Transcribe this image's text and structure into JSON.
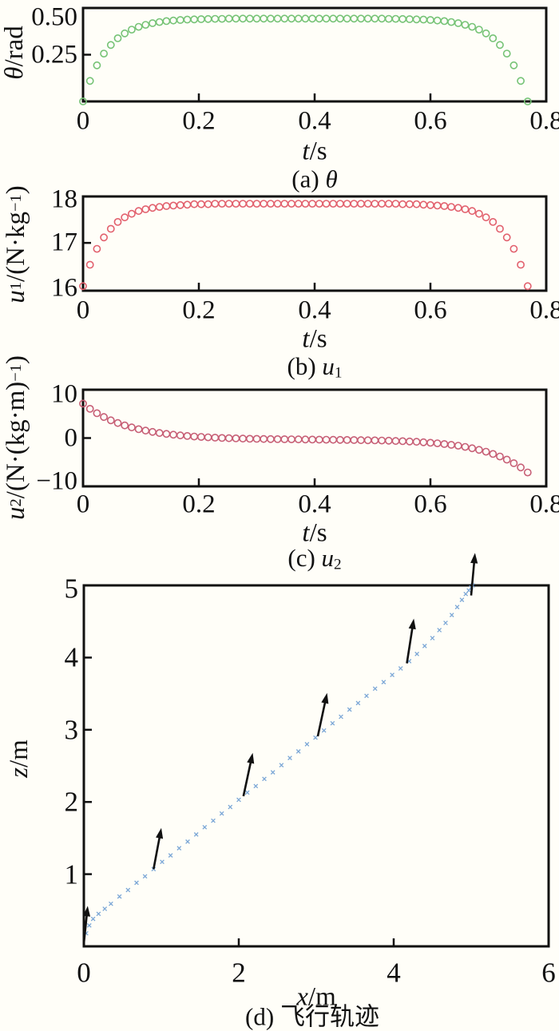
{
  "figure": {
    "background": "#fffef8",
    "axis_color": "#111111"
  },
  "chart_data": [
    {
      "id": "a",
      "type": "scatter",
      "marker": "open-circle",
      "color": "#76c376",
      "caption": "(a) θ",
      "xlabel": "t/s",
      "ylabel": "θ/rad",
      "xlim": [
        0,
        0.8
      ],
      "ylim": [
        0,
        0.5
      ],
      "xticks": [
        {
          "v": 0,
          "label": "0"
        },
        {
          "v": 0.2,
          "label": "0.2"
        },
        {
          "v": 0.4,
          "label": "0.4"
        },
        {
          "v": 0.6,
          "label": "0.6"
        },
        {
          "v": 0.8,
          "label": "0.8"
        }
      ],
      "yticks": [
        {
          "v": 0.5,
          "label": "0.50"
        },
        {
          "v": 0.25,
          "label": "0.25"
        }
      ],
      "x_rule": {
        "t0": 0,
        "dt": 0.012,
        "n": 65,
        "t_end": 0.768
      },
      "values": [
        0,
        0.11,
        0.193,
        0.256,
        0.302,
        0.338,
        0.364,
        0.384,
        0.399,
        0.41,
        0.419,
        0.425,
        0.43,
        0.433,
        0.436,
        0.438,
        0.439,
        0.44,
        0.441,
        0.442,
        0.442,
        0.443,
        0.443,
        0.443,
        0.443,
        0.443,
        0.443,
        0.443,
        0.443,
        0.443,
        0.443,
        0.443,
        0.443,
        0.443,
        0.443,
        0.443,
        0.443,
        0.443,
        0.443,
        0.443,
        0.443,
        0.443,
        0.443,
        0.443,
        0.442,
        0.442,
        0.441,
        0.44,
        0.439,
        0.438,
        0.436,
        0.433,
        0.43,
        0.425,
        0.419,
        0.41,
        0.399,
        0.384,
        0.364,
        0.338,
        0.302,
        0.256,
        0.193,
        0.11,
        0
      ],
      "caption_segments": [
        {
          "t": "(a) "
        },
        {
          "t": "θ",
          "s": "i"
        }
      ],
      "xlabel_segments": [
        {
          "t": "t",
          "s": "i"
        },
        {
          "t": "/s"
        }
      ],
      "ylabel_segments": [
        {
          "t": "θ",
          "s": "i"
        },
        {
          "t": "/rad"
        }
      ]
    },
    {
      "id": "b",
      "type": "scatter",
      "marker": "open-circle",
      "color": "#e2616e",
      "caption": "(b) u1",
      "xlabel": "t/s",
      "ylabel": "u1/(N·kg−1)",
      "xlim": [
        0,
        0.8
      ],
      "ylim": [
        16,
        18
      ],
      "xticks": [
        {
          "v": 0,
          "label": "0"
        },
        {
          "v": 0.2,
          "label": "0.2"
        },
        {
          "v": 0.4,
          "label": "0.4"
        },
        {
          "v": 0.6,
          "label": "0.6"
        },
        {
          "v": 0.8,
          "label": "0.8"
        }
      ],
      "yticks": [
        {
          "v": 18,
          "label": "18"
        },
        {
          "v": 17,
          "label": "17"
        },
        {
          "v": 16,
          "label": "16"
        }
      ],
      "x_rule": {
        "t0": 0,
        "dt": 0.012,
        "n": 65,
        "t_end": 0.768
      },
      "values": [
        16.05,
        16.52,
        16.87,
        17.12,
        17.31,
        17.46,
        17.56,
        17.64,
        17.7,
        17.74,
        17.77,
        17.79,
        17.81,
        17.82,
        17.83,
        17.84,
        17.85,
        17.85,
        17.85,
        17.86,
        17.86,
        17.86,
        17.86,
        17.86,
        17.86,
        17.86,
        17.86,
        17.86,
        17.86,
        17.86,
        17.86,
        17.86,
        17.86,
        17.86,
        17.86,
        17.86,
        17.86,
        17.86,
        17.86,
        17.86,
        17.86,
        17.86,
        17.86,
        17.86,
        17.86,
        17.86,
        17.85,
        17.85,
        17.85,
        17.84,
        17.83,
        17.82,
        17.81,
        17.79,
        17.77,
        17.74,
        17.7,
        17.64,
        17.56,
        17.46,
        17.31,
        17.12,
        16.87,
        16.52,
        16.05
      ],
      "caption_segments": [
        {
          "t": "(b) "
        },
        {
          "t": "u",
          "s": "i"
        },
        {
          "t": "1",
          "s": "sub"
        }
      ],
      "xlabel_segments": [
        {
          "t": "t",
          "s": "i"
        },
        {
          "t": "/s"
        }
      ],
      "ylabel_segments": [
        {
          "t": "u",
          "s": "i"
        },
        {
          "t": "1",
          "s": "sub"
        },
        {
          "t": "/(N·kg"
        },
        {
          "t": "−1",
          "s": "sup"
        },
        {
          "t": ")"
        }
      ]
    },
    {
      "id": "c",
      "type": "scatter",
      "marker": "open-circle",
      "color": "#c75f76",
      "caption": "(c) u2",
      "xlabel": "t/s",
      "ylabel": "u2/(N·(kg·m)−1)",
      "xlim": [
        0,
        0.8
      ],
      "ylim": [
        -10,
        10
      ],
      "xticks": [
        {
          "v": 0,
          "label": "0"
        },
        {
          "v": 0.2,
          "label": "0.2"
        },
        {
          "v": 0.4,
          "label": "0.4"
        },
        {
          "v": 0.6,
          "label": "0.6"
        },
        {
          "v": 0.8,
          "label": "0.8"
        }
      ],
      "yticks": [
        {
          "v": 10,
          "label": "10"
        },
        {
          "v": 0,
          "label": "0"
        },
        {
          "v": -10,
          "label": "−10"
        }
      ],
      "x_rule": {
        "t0": 0,
        "dt": 0.012,
        "n": 65,
        "t_end": 0.768
      },
      "values": [
        7.9,
        6.71,
        5.7,
        4.83,
        4.08,
        3.45,
        2.9,
        2.44,
        2.04,
        1.7,
        1.41,
        1.16,
        0.95,
        0.77,
        0.6,
        0.47,
        0.35,
        0.25,
        0.16,
        0.09,
        0.02,
        -0.04,
        -0.08,
        -0.12,
        -0.16,
        -0.19,
        -0.22,
        -0.23,
        -0.25,
        -0.27,
        -0.29,
        -0.31,
        -0.33,
        -0.35,
        -0.36,
        -0.39,
        -0.4,
        -0.43,
        -0.44,
        -0.45,
        -0.49,
        -0.51,
        -0.53,
        -0.57,
        -0.61,
        -0.67,
        -0.72,
        -0.79,
        -0.87,
        -0.97,
        -1.08,
        -1.21,
        -1.37,
        -1.56,
        -1.77,
        -2.04,
        -2.34,
        -2.72,
        -3.14,
        -3.65,
        -4.24,
        -4.95,
        -5.78,
        -6.75,
        -7.9
      ],
      "caption_segments": [
        {
          "t": "(c) "
        },
        {
          "t": "u",
          "s": "i"
        },
        {
          "t": "2",
          "s": "sub"
        }
      ],
      "xlabel_segments": [
        {
          "t": "t",
          "s": "i"
        },
        {
          "t": "/s"
        }
      ],
      "ylabel_segments": [
        {
          "t": "u",
          "s": "i"
        },
        {
          "t": "2",
          "s": "sub"
        },
        {
          "t": "/(N·(kg·m)"
        },
        {
          "t": "−1",
          "s": "sup"
        },
        {
          "t": ")"
        }
      ]
    },
    {
      "id": "d",
      "type": "scatter",
      "marker": "x-cross",
      "color": "#7aa6d6",
      "arrow_color": "#111111",
      "caption": "(d) 飞行轨迹",
      "xlabel": "x/m",
      "ylabel": "z/m",
      "xlim": [
        0,
        6
      ],
      "ylim": [
        0,
        5
      ],
      "xticks": [
        {
          "v": 0,
          "label": "0"
        },
        {
          "v": 2,
          "label": "2"
        },
        {
          "v": 4,
          "label": "4"
        },
        {
          "v": 6,
          "label": "6"
        }
      ],
      "yticks": [
        {
          "v": 5,
          "label": "5"
        },
        {
          "v": 4,
          "label": "4"
        },
        {
          "v": 3,
          "label": "3"
        },
        {
          "v": 2,
          "label": "2"
        },
        {
          "v": 1,
          "label": "1"
        }
      ],
      "points": [
        [
          0.03,
          0.18
        ],
        [
          0.07,
          0.29
        ],
        [
          0.12,
          0.38
        ],
        [
          0.19,
          0.45
        ],
        [
          0.27,
          0.52
        ],
        [
          0.35,
          0.59
        ],
        [
          0.46,
          0.69
        ],
        [
          0.57,
          0.78
        ],
        [
          0.68,
          0.88
        ],
        [
          0.79,
          0.97
        ],
        [
          0.9,
          1.07
        ],
        [
          1.01,
          1.17
        ],
        [
          1.12,
          1.26
        ],
        [
          1.23,
          1.36
        ],
        [
          1.34,
          1.45
        ],
        [
          1.45,
          1.55
        ],
        [
          1.56,
          1.65
        ],
        [
          1.67,
          1.74
        ],
        [
          1.78,
          1.84
        ],
        [
          1.89,
          1.93
        ],
        [
          2.0,
          2.03
        ],
        [
          2.11,
          2.13
        ],
        [
          2.22,
          2.22
        ],
        [
          2.33,
          2.32
        ],
        [
          2.44,
          2.41
        ],
        [
          2.55,
          2.51
        ],
        [
          2.66,
          2.61
        ],
        [
          2.77,
          2.7
        ],
        [
          2.88,
          2.8
        ],
        [
          2.99,
          2.89
        ],
        [
          3.1,
          2.99
        ],
        [
          3.21,
          3.09
        ],
        [
          3.32,
          3.18
        ],
        [
          3.43,
          3.28
        ],
        [
          3.54,
          3.37
        ],
        [
          3.65,
          3.47
        ],
        [
          3.76,
          3.57
        ],
        [
          3.87,
          3.66
        ],
        [
          3.98,
          3.76
        ],
        [
          4.09,
          3.85
        ],
        [
          4.2,
          3.95
        ],
        [
          4.3,
          4.05
        ],
        [
          4.4,
          4.16
        ],
        [
          4.5,
          4.27
        ],
        [
          4.59,
          4.38
        ],
        [
          4.67,
          4.48
        ],
        [
          4.75,
          4.59
        ],
        [
          4.82,
          4.7
        ],
        [
          4.88,
          4.8
        ],
        [
          4.93,
          4.88
        ],
        [
          4.97,
          4.93
        ],
        [
          5.0,
          4.97
        ],
        [
          5.02,
          5.0
        ]
      ],
      "arrows": [
        {
          "base": [
            0.0,
            0.04
          ],
          "tip": [
            0.05,
            0.56
          ]
        },
        {
          "base": [
            0.9,
            1.07
          ],
          "tip": [
            1.0,
            1.64
          ]
        },
        {
          "base": [
            2.06,
            2.08
          ],
          "tip": [
            2.18,
            2.68
          ]
        },
        {
          "base": [
            3.02,
            2.91
          ],
          "tip": [
            3.14,
            3.51
          ]
        },
        {
          "base": [
            4.17,
            3.92
          ],
          "tip": [
            4.26,
            4.54
          ]
        },
        {
          "base": [
            5.0,
            4.86
          ],
          "tip": [
            5.05,
            5.45
          ]
        }
      ],
      "caption_segments": [
        {
          "t": "(d) 飞行轨迹"
        }
      ],
      "xlabel_segments": [
        {
          "t": "x",
          "s": "i"
        },
        {
          "t": "/m"
        }
      ],
      "ylabel_segments": [
        {
          "t": "z",
          "s": "i"
        },
        {
          "t": "/m"
        }
      ]
    }
  ]
}
